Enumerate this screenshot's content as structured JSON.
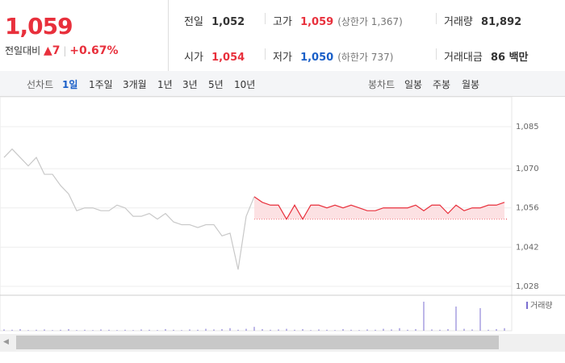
{
  "header": {
    "price": "1,059",
    "change_label": "전일대비",
    "change": "7",
    "change_pct": "+0.67%",
    "stats": [
      [
        {
          "label": "전일",
          "value": "1,052"
        },
        {
          "label": "고가",
          "value": "1,059",
          "note": "(상한가 1,367)"
        },
        {
          "label": "거래량",
          "value": "81,892"
        }
      ],
      [
        {
          "label": "시가",
          "value": "1,054"
        },
        {
          "label": "저가",
          "value": "1,050",
          "note": "(하한가 737)"
        },
        {
          "label": "거래대금",
          "value": "86 백만"
        }
      ]
    ]
  },
  "tabs": {
    "line_label": "선차트",
    "line": [
      "1일",
      "1주일",
      "3개월",
      "1년",
      "3년",
      "5년",
      "10년"
    ],
    "candle_label": "봉차트",
    "candle": [
      "일봉",
      "주봉",
      "월봉"
    ]
  },
  "chart_data": {
    "type": "line",
    "xlim": [
      0,
      62
    ],
    "ylim": [
      1028,
      1085
    ],
    "yticks": [
      {
        "value": 1085,
        "label": "1,085"
      },
      {
        "value": 1070,
        "label": "1,070"
      },
      {
        "value": 1056,
        "label": "1,056"
      },
      {
        "value": 1042,
        "label": "1,042"
      },
      {
        "value": 1028,
        "label": "1,028"
      }
    ],
    "grid": true,
    "baseline": 1052,
    "fill_color": "#fbd9dc",
    "series": [
      {
        "color": "#c8c8c8",
        "values": [
          1074,
          1077,
          1074,
          1071,
          1074,
          1068,
          1068,
          1064,
          1061,
          1055,
          1056,
          1056,
          1055,
          1055,
          1057,
          1056,
          1053,
          1053,
          1054,
          1052,
          1054,
          1051,
          1050,
          1050,
          1049,
          1050,
          1050,
          1046,
          1047,
          1034,
          1053,
          1060,
          null,
          null,
          null,
          null,
          null,
          null,
          null,
          null,
          null,
          null,
          null,
          null,
          null,
          null,
          null,
          null,
          null,
          null,
          null,
          null,
          null,
          null,
          null,
          null,
          null,
          null,
          null,
          null,
          null,
          null,
          null
        ]
      },
      {
        "color": "#e8303c",
        "values": [
          null,
          null,
          null,
          null,
          null,
          null,
          null,
          null,
          null,
          null,
          null,
          null,
          null,
          null,
          null,
          null,
          null,
          null,
          null,
          null,
          null,
          null,
          null,
          null,
          null,
          null,
          null,
          null,
          null,
          null,
          null,
          1060,
          1058,
          1057,
          1057,
          1052,
          1057,
          1052,
          1057,
          1057,
          1056,
          1057,
          1056,
          1057,
          1056,
          1055,
          1055,
          1056,
          1056,
          1056,
          1056,
          1057,
          1055,
          1057,
          1057,
          1054,
          1057,
          1055,
          1056,
          1056,
          1057,
          1057,
          1058
        ]
      }
    ],
    "volume": {
      "label": "거래량",
      "color": "#7b6fd0",
      "ylim": [
        0,
        100
      ],
      "values": [
        4,
        3,
        5,
        2,
        3,
        4,
        2,
        3,
        5,
        2,
        3,
        2,
        4,
        3,
        2,
        3,
        2,
        4,
        3,
        2,
        5,
        3,
        2,
        4,
        3,
        6,
        4,
        5,
        8,
        3,
        6,
        12,
        5,
        3,
        4,
        6,
        3,
        5,
        2,
        4,
        3,
        2,
        5,
        3,
        2,
        4,
        3,
        6,
        4,
        8,
        3,
        5,
        90,
        4,
        3,
        5,
        75,
        6,
        4,
        70,
        3,
        5,
        8
      ]
    }
  }
}
